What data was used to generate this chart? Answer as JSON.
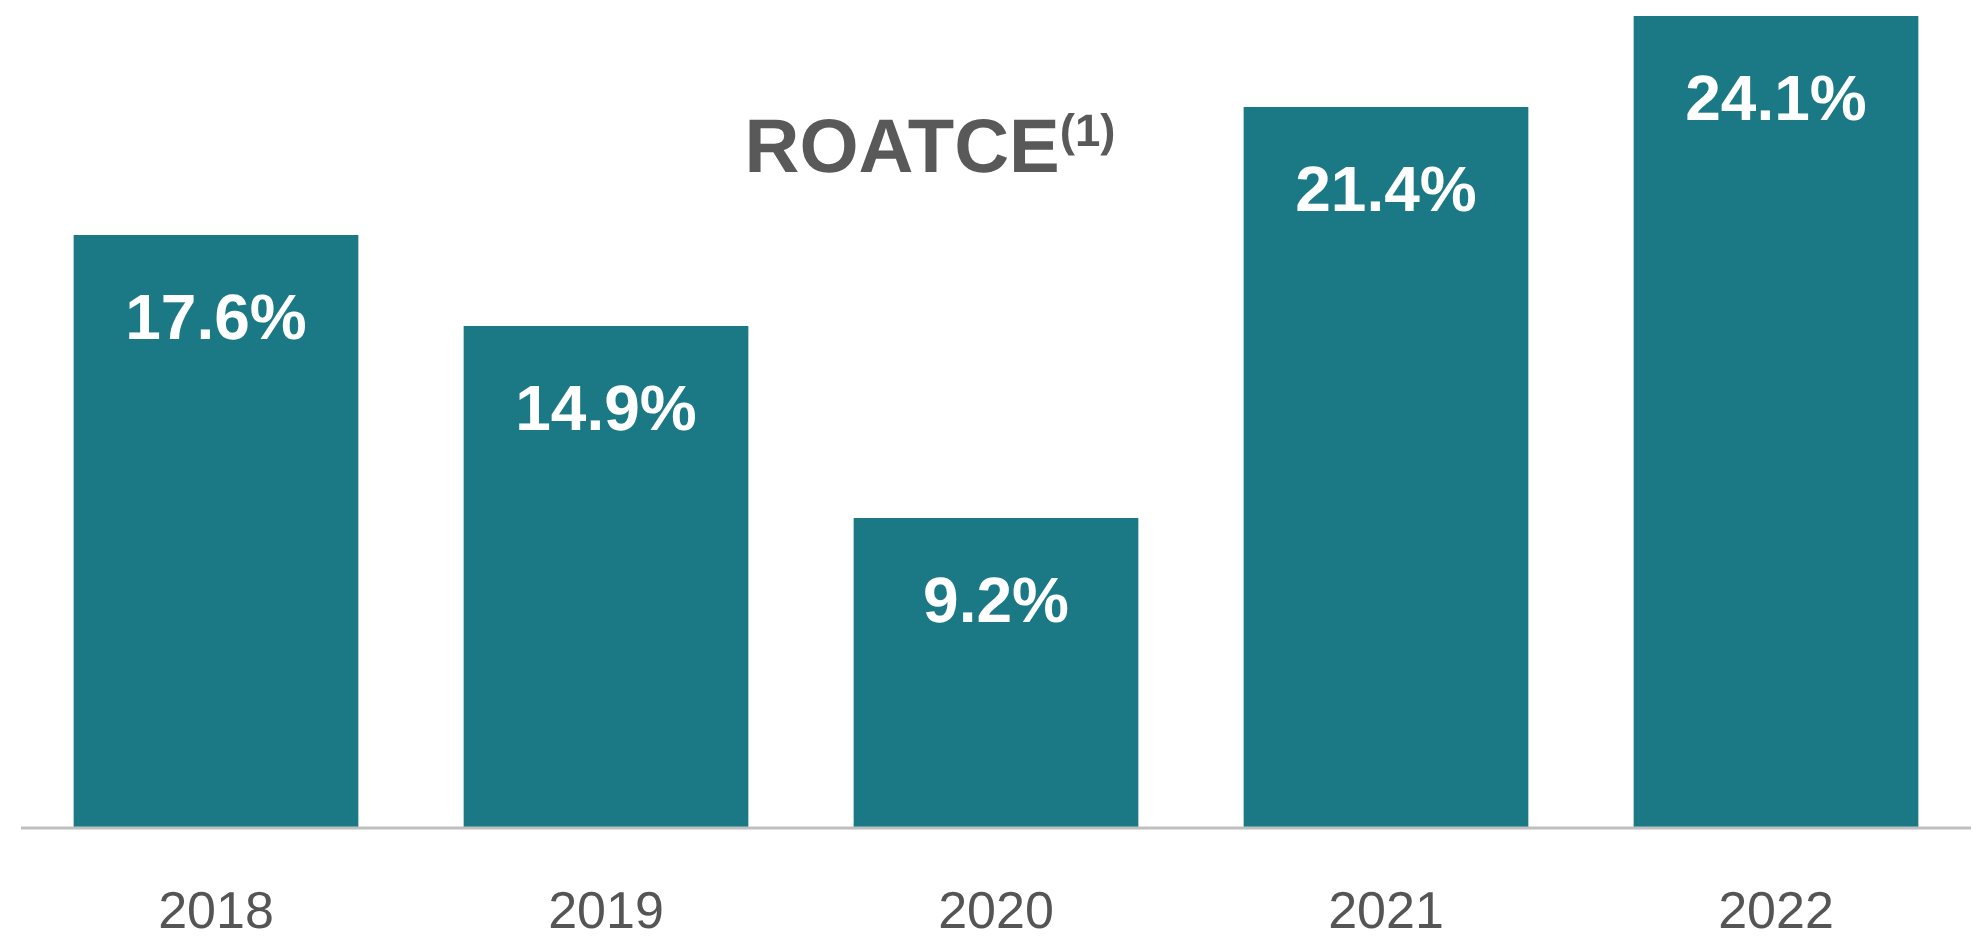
{
  "chart_data": {
    "type": "bar",
    "title": "ROATCE$^{(1)}$",
    "categories": [
      "2018",
      "2019",
      "2020",
      "2021",
      "2022"
    ],
    "values": [
      17.6,
      14.9,
      9.2,
      21.4,
      24.1
    ],
    "value_labels": [
      "17.6%",
      "14.9%",
      "9.2%",
      "21.4%",
      "24.1%"
    ],
    "color": "#1b7885"
  }
}
